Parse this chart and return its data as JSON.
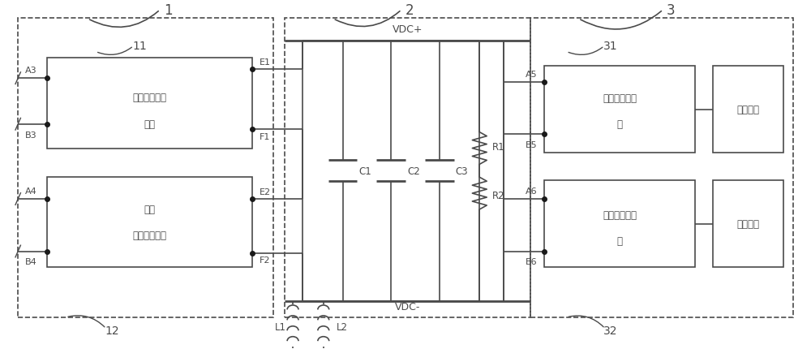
{
  "fig_width": 10.0,
  "fig_height": 4.31,
  "bg_color": "#ffffff",
  "line_color": "#4a4a4a",
  "lw": 1.2,
  "lw_thick": 2.0,
  "lw_dashed": 1.2,
  "font_size": 9,
  "font_size_label": 8.5,
  "labels": {
    "box1_text1": "第一四象限整",
    "box1_text2": "流器",
    "box2_text1": "第二",
    "box2_text2": "四象限整流器",
    "box3_text1": "第一三相逆变",
    "box3_text2": "器",
    "box4_text1": "第二三相逆变",
    "box4_text2": "器",
    "motor1": "牵引电机",
    "motor2": "牵引电机",
    "VDC_pos": "VDC+",
    "VDC_neg": "VDC-",
    "label_1": "1",
    "label_2": "2",
    "label_3": "3",
    "label_11": "11",
    "label_12": "12",
    "label_31": "31",
    "label_32": "32",
    "A3": "A3",
    "B3": "B3",
    "A4": "A4",
    "B4": "B4",
    "E1": "E1",
    "F1": "F1",
    "E2": "E2",
    "F2": "F2",
    "A5": "A5",
    "B5": "B5",
    "A6": "A6",
    "B6": "B6",
    "C1": "C1",
    "C2": "C2",
    "C3": "C3",
    "R1": "R1",
    "R2": "R2",
    "L1": "L1",
    "L2": "L2"
  }
}
